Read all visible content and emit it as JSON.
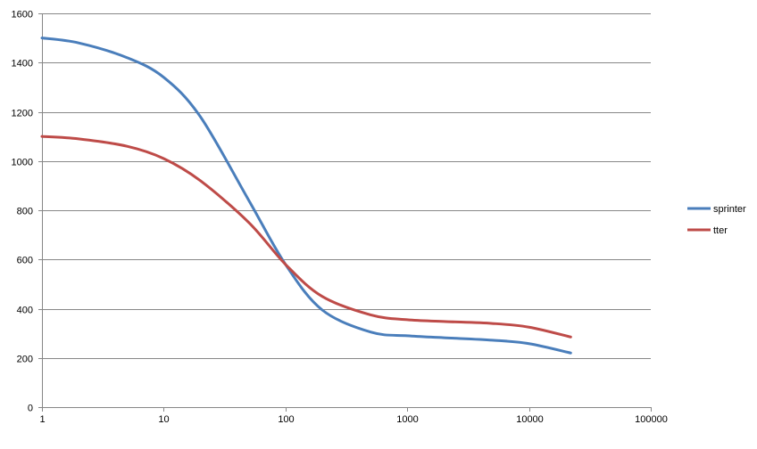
{
  "chart_data": {
    "type": "line",
    "title": "",
    "xlabel": "",
    "ylabel": "",
    "x_scale": "log",
    "xlim": [
      1,
      100000
    ],
    "ylim": [
      0,
      1600
    ],
    "x_ticks": [
      1,
      10,
      100,
      1000,
      10000,
      100000
    ],
    "x_tick_labels": [
      "1",
      "10",
      "100",
      "1000",
      "10000",
      "100000"
    ],
    "y_ticks": [
      0,
      200,
      400,
      600,
      800,
      1000,
      1200,
      1400,
      1600
    ],
    "y_tick_labels": [
      "0",
      "200",
      "400",
      "600",
      "800",
      "1000",
      "1200",
      "1400",
      "1600"
    ],
    "grid": "horizontal",
    "legend_position": "right",
    "series": [
      {
        "name": "sprinter",
        "color": "#4a7ebb",
        "x": [
          1,
          2,
          5,
          10,
          20,
          50,
          100,
          200,
          500,
          1000,
          2000,
          5000,
          10000,
          22000
        ],
        "y": [
          1500,
          1480,
          1420,
          1340,
          1180,
          840,
          580,
          395,
          305,
          290,
          282,
          272,
          258,
          220
        ]
      },
      {
        "name": "tter",
        "color": "#be4b48",
        "x": [
          1,
          2,
          5,
          10,
          20,
          50,
          100,
          200,
          500,
          1000,
          2000,
          5000,
          10000,
          22000
        ],
        "y": [
          1100,
          1090,
          1060,
          1010,
          920,
          750,
          580,
          450,
          375,
          355,
          348,
          340,
          325,
          285
        ]
      }
    ]
  }
}
